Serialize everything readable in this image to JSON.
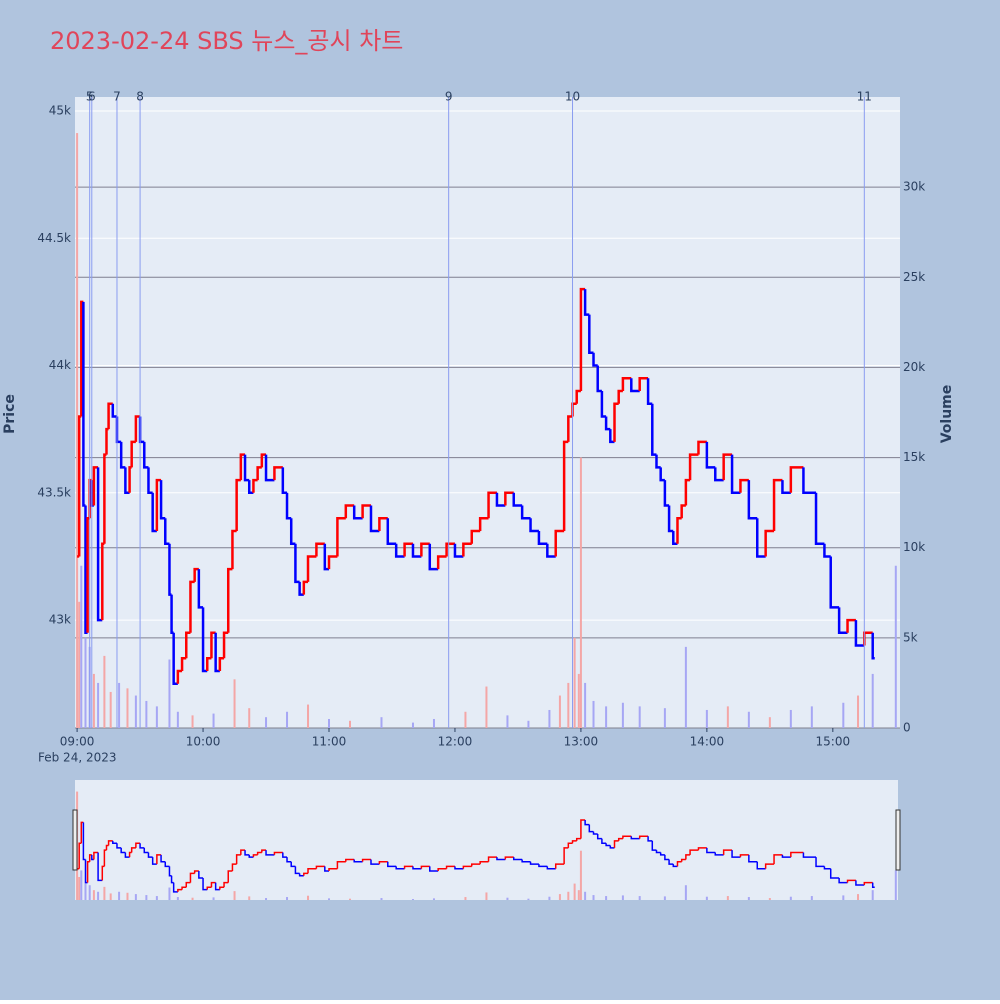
{
  "chart_data": {
    "type": "step-price-volume",
    "title": "2023-02-24 SBS 뉴스_공시 차트",
    "x_date_label": "Feb 24, 2023",
    "y_title": "Price",
    "y2_title": "Volume",
    "xlim": [
      "08:59",
      "15:32"
    ],
    "xticks": [
      "09:00",
      "10:00",
      "11:00",
      "12:00",
      "13:00",
      "14:00",
      "15:00"
    ],
    "ylim": [
      42576,
      45055
    ],
    "yticks": [
      {
        "value": 43000,
        "label": "43k"
      },
      {
        "value": 43500,
        "label": "43.5k"
      },
      {
        "value": 44000,
        "label": "44k"
      },
      {
        "value": 44500,
        "label": "44.5k"
      },
      {
        "value": 45000,
        "label": "45k"
      }
    ],
    "y2lim": [
      0,
      35000
    ],
    "y2ticks": [
      0,
      {
        "value": 5000,
        "label": "5k"
      },
      {
        "value": 10000,
        "label": "10k"
      },
      {
        "value": 15000,
        "label": "15k"
      },
      {
        "value": 20000,
        "label": "20k"
      },
      {
        "value": 25000,
        "label": "25k"
      },
      {
        "value": 30000,
        "label": "30k"
      }
    ],
    "up_color": "#ff0000",
    "down_color": "#0000ff",
    "annotations": [
      {
        "x": "09:06",
        "label": "5"
      },
      {
        "x": "09:07",
        "label": "6"
      },
      {
        "x": "09:19",
        "label": "7"
      },
      {
        "x": "09:30",
        "label": "8"
      },
      {
        "x": "11:57",
        "label": "9"
      },
      {
        "x": "12:56",
        "label": "10"
      },
      {
        "x": "15:15",
        "label": "11"
      }
    ],
    "series": [
      {
        "name": "Price",
        "x": [
          "09:00",
          "09:01",
          "09:02",
          "09:03",
          "09:04",
          "09:05",
          "09:06",
          "09:07",
          "09:08",
          "09:10",
          "09:12",
          "09:13",
          "09:14",
          "09:15",
          "09:17",
          "09:19",
          "09:21",
          "09:23",
          "09:25",
          "09:26",
          "09:28",
          "09:30",
          "09:32",
          "09:34",
          "09:36",
          "09:38",
          "09:40",
          "09:42",
          "09:44",
          "09:45",
          "09:46",
          "09:48",
          "09:50",
          "09:52",
          "09:54",
          "09:56",
          "09:58",
          "10:00",
          "10:02",
          "10:04",
          "10:06",
          "10:08",
          "10:10",
          "10:12",
          "10:14",
          "10:16",
          "10:18",
          "10:20",
          "10:22",
          "10:24",
          "10:26",
          "10:28",
          "10:30",
          "10:34",
          "10:38",
          "10:40",
          "10:42",
          "10:44",
          "10:46",
          "10:48",
          "10:50",
          "10:54",
          "10:58",
          "11:00",
          "11:04",
          "11:08",
          "11:12",
          "11:16",
          "11:20",
          "11:24",
          "11:28",
          "11:32",
          "11:36",
          "11:40",
          "11:44",
          "11:48",
          "11:52",
          "11:56",
          "12:00",
          "12:04",
          "12:08",
          "12:12",
          "12:16",
          "12:20",
          "12:24",
          "12:28",
          "12:32",
          "12:36",
          "12:40",
          "12:44",
          "12:48",
          "12:52",
          "12:54",
          "12:56",
          "12:58",
          "13:00",
          "13:02",
          "13:04",
          "13:06",
          "13:08",
          "13:10",
          "13:12",
          "13:14",
          "13:16",
          "13:18",
          "13:20",
          "13:24",
          "13:28",
          "13:32",
          "13:34",
          "13:36",
          "13:38",
          "13:40",
          "13:42",
          "13:44",
          "13:46",
          "13:48",
          "13:50",
          "13:52",
          "13:56",
          "14:00",
          "14:04",
          "14:08",
          "14:12",
          "14:16",
          "14:20",
          "14:24",
          "14:28",
          "14:32",
          "14:36",
          "14:40",
          "14:46",
          "14:52",
          "14:56",
          "14:59",
          "15:03",
          "15:07",
          "15:11",
          "15:15",
          "15:19"
        ],
        "values": [
          43250,
          43800,
          44250,
          43450,
          42950,
          43400,
          43550,
          43450,
          43600,
          43000,
          43300,
          43650,
          43750,
          43850,
          43800,
          43700,
          43600,
          43500,
          43600,
          43700,
          43800,
          43700,
          43600,
          43500,
          43350,
          43550,
          43400,
          43300,
          43100,
          42950,
          42750,
          42800,
          42850,
          42950,
          43150,
          43200,
          43050,
          42800,
          42850,
          42950,
          42800,
          42850,
          42950,
          43200,
          43350,
          43550,
          43650,
          43550,
          43500,
          43550,
          43600,
          43650,
          43550,
          43600,
          43500,
          43400,
          43300,
          43150,
          43100,
          43150,
          43250,
          43300,
          43200,
          43250,
          43400,
          43450,
          43400,
          43450,
          43350,
          43400,
          43300,
          43250,
          43300,
          43250,
          43300,
          43200,
          43250,
          43300,
          43250,
          43300,
          43350,
          43400,
          43500,
          43450,
          43500,
          43450,
          43400,
          43350,
          43300,
          43250,
          43350,
          43700,
          43800,
          43850,
          43900,
          44300,
          44200,
          44050,
          44000,
          43900,
          43800,
          43750,
          43700,
          43850,
          43900,
          43950,
          43900,
          43950,
          43850,
          43650,
          43600,
          43550,
          43450,
          43350,
          43300,
          43400,
          43450,
          43550,
          43650,
          43700,
          43600,
          43550,
          43650,
          43500,
          43550,
          43400,
          43250,
          43350,
          43550,
          43500,
          43600,
          43500,
          43300,
          43250,
          43050,
          42950,
          43000,
          42900,
          42950,
          42850
        ]
      },
      {
        "name": "Volume",
        "axis": "y2",
        "x": [
          "09:00",
          "09:01",
          "09:02",
          "09:04",
          "09:06",
          "09:08",
          "09:10",
          "09:13",
          "09:16",
          "09:20",
          "09:24",
          "09:28",
          "09:33",
          "09:38",
          "09:44",
          "09:48",
          "09:55",
          "10:05",
          "10:15",
          "10:22",
          "10:30",
          "10:40",
          "10:50",
          "11:00",
          "11:10",
          "11:25",
          "11:40",
          "11:50",
          "12:05",
          "12:15",
          "12:25",
          "12:35",
          "12:45",
          "12:50",
          "12:54",
          "12:57",
          "12:59",
          "13:00",
          "13:02",
          "13:06",
          "13:12",
          "13:20",
          "13:28",
          "13:40",
          "13:50",
          "14:00",
          "14:10",
          "14:20",
          "14:30",
          "14:40",
          "14:50",
          "15:05",
          "15:12",
          "15:19",
          "15:30"
        ],
        "values": [
          33000,
          7000,
          9000,
          5000,
          4500,
          3000,
          2500,
          4000,
          2000,
          2500,
          2200,
          1800,
          1500,
          1200,
          3800,
          900,
          700,
          800,
          2700,
          1100,
          600,
          900,
          1300,
          500,
          400,
          600,
          300,
          500,
          900,
          2300,
          700,
          400,
          1000,
          1800,
          2500,
          5000,
          3000,
          15000,
          2500,
          1500,
          1200,
          1400,
          1200,
          1100,
          4500,
          1000,
          1200,
          900,
          600,
          1000,
          1200,
          1400,
          1800,
          3000,
          9000
        ],
        "colors": [
          "#f4a6a6",
          "#f4a6a6",
          "#a6a6f4",
          "#a6a6f4",
          "#a6a6f4",
          "#f4a6a6",
          "#a6a6f4",
          "#f4a6a6",
          "#f4a6a6",
          "#a6a6f4",
          "#f4a6a6",
          "#a6a6f4",
          "#a6a6f4",
          "#a6a6f4",
          "#a6a6f4",
          "#a6a6f4",
          "#f4a6a6",
          "#a6a6f4",
          "#f4a6a6",
          "#f4a6a6",
          "#a6a6f4",
          "#a6a6f4",
          "#f4a6a6",
          "#a6a6f4",
          "#f4a6a6",
          "#a6a6f4",
          "#a6a6f4",
          "#a6a6f4",
          "#f4a6a6",
          "#f4a6a6",
          "#a6a6f4",
          "#a6a6f4",
          "#a6a6f4",
          "#f4a6a6",
          "#f4a6a6",
          "#f4a6a6",
          "#f4a6a6",
          "#f4a6a6",
          "#a6a6f4",
          "#a6a6f4",
          "#a6a6f4",
          "#a6a6f4",
          "#a6a6f4",
          "#a6a6f4",
          "#a6a6f4",
          "#a6a6f4",
          "#f4a6a6",
          "#a6a6f4",
          "#f4a6a6",
          "#a6a6f4",
          "#a6a6f4",
          "#a6a6f4",
          "#f4a6a6",
          "#a6a6f4",
          "#a6a6f4"
        ]
      }
    ],
    "annotation_color": "#8a9cf0",
    "title_color": "#e0455a",
    "background": "#b0c4de",
    "plot_background": "#e5ecf6"
  }
}
